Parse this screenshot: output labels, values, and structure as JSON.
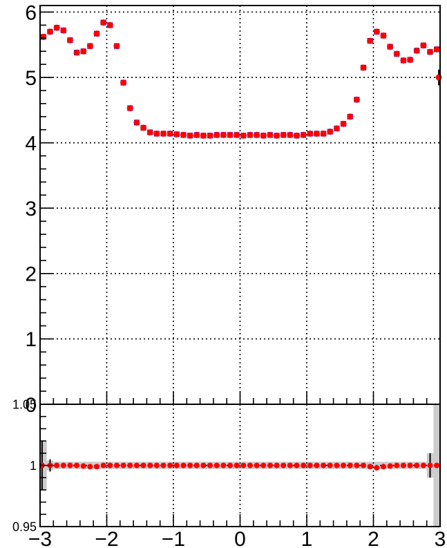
{
  "chart_data": [
    {
      "type": "scatter",
      "title": "",
      "xlabel": "",
      "ylabel": "",
      "xlim": [
        -3,
        3
      ],
      "ylim": [
        0,
        6.1
      ],
      "grid": true,
      "x_ticks": [
        -3,
        -2,
        -1,
        0,
        1,
        2,
        3
      ],
      "y_ticks": [
        0,
        1,
        2,
        3,
        4,
        5,
        6
      ],
      "y_tick_labels": [
        "0",
        "1",
        "2",
        "3",
        "4",
        "5",
        "6"
      ],
      "series": [
        {
          "marker": "square",
          "color": "#0000ff",
          "x": [
            -2.95,
            -2.85,
            -2.75,
            -2.65,
            -2.55,
            -2.45,
            -2.35,
            -2.25,
            -2.15,
            -2.05,
            -1.95,
            -1.85,
            -1.75,
            -1.65,
            -1.55,
            -1.45,
            -1.35,
            -1.25,
            -1.15,
            -1.05,
            -0.95,
            -0.85,
            -0.75,
            -0.65,
            -0.55,
            -0.45,
            -0.35,
            -0.25,
            -0.15,
            -0.05,
            0.05,
            0.15,
            0.25,
            0.35,
            0.45,
            0.55,
            0.65,
            0.75,
            0.85,
            0.95,
            1.05,
            1.15,
            1.25,
            1.35,
            1.45,
            1.55,
            1.65,
            1.75,
            1.85,
            1.95,
            2.05,
            2.15,
            2.25,
            2.35,
            2.45,
            2.55,
            2.65,
            2.75,
            2.85,
            2.95
          ],
          "y": [
            5.62,
            5.7,
            5.76,
            5.72,
            5.57,
            5.38,
            5.4,
            5.48,
            5.67,
            5.84,
            5.8,
            5.48,
            4.92,
            4.53,
            4.31,
            4.23,
            4.16,
            4.14,
            4.14,
            4.14,
            4.13,
            4.12,
            4.11,
            4.12,
            4.11,
            4.11,
            4.12,
            4.12,
            4.12,
            4.12,
            4.11,
            4.12,
            4.12,
            4.11,
            4.12,
            4.11,
            4.12,
            4.12,
            4.11,
            4.12,
            4.14,
            4.14,
            4.14,
            4.17,
            4.22,
            4.29,
            4.4,
            4.66,
            5.15,
            5.56,
            5.7,
            5.64,
            5.47,
            5.36,
            5.26,
            5.27,
            5.41,
            5.49,
            5.39,
            5.43
          ]
        },
        {
          "marker": "circle",
          "color": "#ff0000",
          "x": [
            -2.95,
            -2.85,
            -2.75,
            -2.65,
            -2.55,
            -2.45,
            -2.35,
            -2.25,
            -2.15,
            -2.05,
            -1.95,
            -1.85,
            -1.75,
            -1.65,
            -1.55,
            -1.45,
            -1.35,
            -1.25,
            -1.15,
            -1.05,
            -0.95,
            -0.85,
            -0.75,
            -0.65,
            -0.55,
            -0.45,
            -0.35,
            -0.25,
            -0.15,
            -0.05,
            0.05,
            0.15,
            0.25,
            0.35,
            0.45,
            0.55,
            0.65,
            0.75,
            0.85,
            0.95,
            1.05,
            1.15,
            1.25,
            1.35,
            1.45,
            1.55,
            1.65,
            1.75,
            1.85,
            1.95,
            2.05,
            2.15,
            2.25,
            2.35,
            2.45,
            2.55,
            2.65,
            2.75,
            2.85,
            2.95,
            2.98
          ],
          "y": [
            5.62,
            5.7,
            5.76,
            5.72,
            5.57,
            5.38,
            5.4,
            5.48,
            5.67,
            5.84,
            5.8,
            5.48,
            4.92,
            4.53,
            4.31,
            4.23,
            4.16,
            4.14,
            4.14,
            4.14,
            4.13,
            4.12,
            4.11,
            4.12,
            4.11,
            4.11,
            4.12,
            4.12,
            4.12,
            4.12,
            4.11,
            4.12,
            4.12,
            4.11,
            4.12,
            4.11,
            4.12,
            4.12,
            4.11,
            4.12,
            4.14,
            4.14,
            4.14,
            4.17,
            4.22,
            4.29,
            4.4,
            4.66,
            5.15,
            5.56,
            5.7,
            5.64,
            5.47,
            5.36,
            5.26,
            5.27,
            5.41,
            5.49,
            5.39,
            5.43,
            5.0
          ],
          "y_err": [
            0.02,
            0,
            0,
            0,
            0,
            0,
            0,
            0,
            0,
            0,
            0,
            0,
            0,
            0,
            0,
            0,
            0,
            0,
            0,
            0,
            0,
            0,
            0,
            0,
            0,
            0,
            0,
            0,
            0,
            0,
            0,
            0,
            0,
            0,
            0,
            0,
            0,
            0,
            0,
            0,
            0,
            0,
            0,
            0,
            0,
            0,
            0,
            0,
            0,
            0,
            0,
            0,
            0,
            0,
            0,
            0,
            0,
            0,
            0,
            0.02,
            0.12
          ]
        }
      ]
    },
    {
      "type": "scatter",
      "title": "",
      "xlabel": "",
      "ylabel": "",
      "xlim": [
        -3,
        3
      ],
      "ylim": [
        0.95,
        1.05
      ],
      "grid": true,
      "x_ticks": [
        -3,
        -2,
        -1,
        0,
        1,
        2,
        3
      ],
      "x_tick_labels": [
        "−3",
        "−2",
        "−1",
        "0",
        "1",
        "2",
        "3"
      ],
      "y_ticks": [
        0.95,
        1,
        1.05
      ],
      "y_tick_labels": [
        "0.95",
        "1",
        "1.05"
      ],
      "series": [
        {
          "marker": "circle",
          "color": "#ff0000",
          "x": [
            -2.97,
            -2.85,
            -2.75,
            -2.65,
            -2.55,
            -2.45,
            -2.35,
            -2.25,
            -2.15,
            -2.05,
            -1.95,
            -1.85,
            -1.75,
            -1.65,
            -1.55,
            -1.45,
            -1.35,
            -1.25,
            -1.15,
            -1.05,
            -0.95,
            -0.85,
            -0.75,
            -0.65,
            -0.55,
            -0.45,
            -0.35,
            -0.25,
            -0.15,
            -0.05,
            0.05,
            0.15,
            0.25,
            0.35,
            0.45,
            0.55,
            0.65,
            0.75,
            0.85,
            0.95,
            1.05,
            1.15,
            1.25,
            1.35,
            1.45,
            1.55,
            1.65,
            1.75,
            1.85,
            1.95,
            2.05,
            2.15,
            2.25,
            2.35,
            2.45,
            2.55,
            2.65,
            2.75,
            2.85,
            2.95
          ],
          "y": [
            1.0,
            1.0,
            1.0,
            1.0,
            1.0,
            1.0,
            0.9995,
            0.999,
            0.999,
            1.0,
            1.0,
            1.0,
            1.0,
            1.0,
            1.0,
            1.0,
            1.0,
            1.0,
            1.0,
            1.0,
            1.0,
            1.0,
            1.0,
            1.0,
            1.0,
            1.0,
            1.0,
            1.0,
            1.0,
            1.0,
            1.0,
            1.0,
            1.0,
            1.0,
            1.0,
            1.0,
            1.0,
            1.0,
            1.0,
            1.0,
            1.0,
            1.0,
            1.0,
            1.0,
            1.0,
            1.0,
            1.0,
            1.0,
            1.0,
            0.999,
            0.998,
            0.999,
            0.9995,
            1.0,
            1.0,
            1.0,
            1.0,
            1.0,
            1.0,
            1.0
          ],
          "y_err": [
            0.02,
            0.005,
            0,
            0,
            0,
            0,
            0,
            0,
            0,
            0,
            0,
            0,
            0,
            0,
            0,
            0,
            0,
            0,
            0,
            0,
            0,
            0,
            0,
            0,
            0,
            0,
            0,
            0,
            0,
            0,
            0,
            0,
            0,
            0,
            0,
            0,
            0,
            0,
            0,
            0,
            0,
            0,
            0,
            0,
            0,
            0,
            0,
            0,
            0,
            0,
            0,
            0,
            0,
            0,
            0,
            0,
            0,
            0,
            0.01,
            0.0
          ]
        }
      ],
      "uncertainty_band": {
        "color": "#cccccc",
        "x": [
          -2.95,
          -2.85,
          -2.75,
          -2.65,
          -2.55,
          -2.45,
          -2.35,
          -2.25,
          -2.15,
          -2.05,
          -1.95,
          -1.85,
          -1.75,
          -1.65,
          -1.55,
          -1.45,
          -1.35,
          -1.25,
          -1.15,
          -1.05,
          -0.95,
          -0.85,
          -0.75,
          -0.65,
          -0.55,
          -0.45,
          -0.35,
          -0.25,
          -0.15,
          -0.05,
          0.05,
          0.15,
          0.25,
          0.35,
          0.45,
          0.55,
          0.65,
          0.75,
          0.85,
          0.95,
          1.05,
          1.15,
          1.25,
          1.35,
          1.45,
          1.55,
          1.65,
          1.75,
          1.85,
          1.95,
          2.05,
          2.15,
          2.25,
          2.35,
          2.45,
          2.55,
          2.65,
          2.75,
          2.85,
          2.95
        ],
        "half_width": [
          0.02,
          0.004,
          0.003,
          0.003,
          0.003,
          0.003,
          0.003,
          0.003,
          0.003,
          0.003,
          0.003,
          0.003,
          0.003,
          0.003,
          0.003,
          0.003,
          0.003,
          0.003,
          0.003,
          0.003,
          0.003,
          0.003,
          0.003,
          0.003,
          0.003,
          0.003,
          0.003,
          0.003,
          0.003,
          0.003,
          0.003,
          0.003,
          0.003,
          0.003,
          0.003,
          0.003,
          0.003,
          0.003,
          0.003,
          0.003,
          0.003,
          0.003,
          0.003,
          0.003,
          0.003,
          0.003,
          0.003,
          0.003,
          0.003,
          0.003,
          0.003,
          0.003,
          0.003,
          0.003,
          0.003,
          0.003,
          0.003,
          0.003,
          0.01,
          0.05
        ]
      }
    }
  ]
}
